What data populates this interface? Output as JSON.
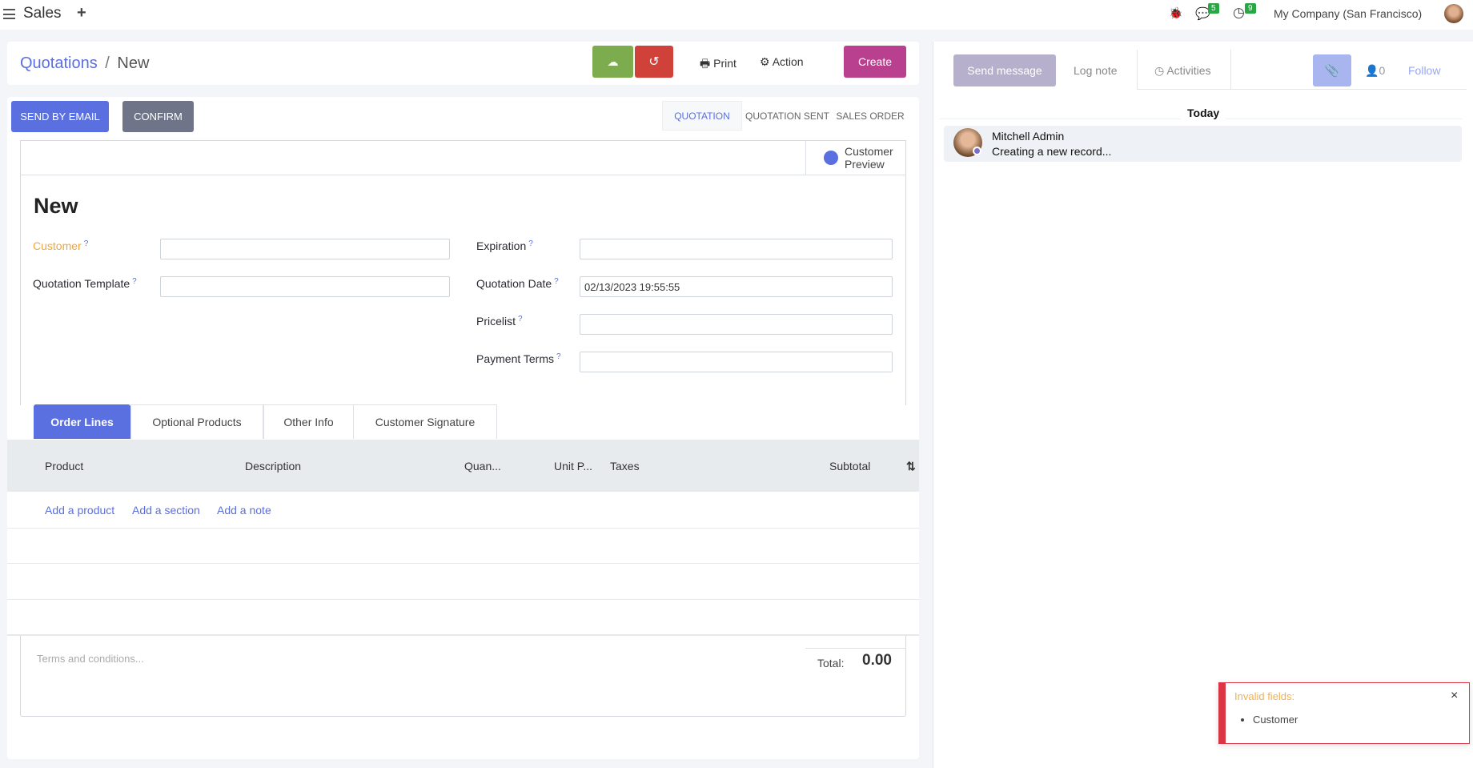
{
  "topbar": {
    "app": "Sales",
    "plus": "+",
    "chat_count": "5",
    "activity_count": "9",
    "company": "My Company (San Francisco)"
  },
  "control": {
    "breadcrumb_parent": "Quotations",
    "breadcrumb_sep": "/",
    "breadcrumb_current": "New",
    "print": "Print",
    "action": "Action",
    "create": "Create"
  },
  "buttons": {
    "send_email": "SEND BY EMAIL",
    "confirm": "CONFIRM"
  },
  "statusbar": [
    "QUOTATION",
    "QUOTATION SENT",
    "SALES ORDER"
  ],
  "customer_preview": "Customer Preview",
  "form": {
    "title": "New",
    "customer": {
      "label": "Customer",
      "value": ""
    },
    "template": {
      "label": "Quotation Template",
      "value": ""
    },
    "expiration": {
      "label": "Expiration",
      "value": ""
    },
    "date": {
      "label": "Quotation Date",
      "value": "02/13/2023 19:55:55"
    },
    "pricelist": {
      "label": "Pricelist",
      "value": ""
    },
    "payment_terms": {
      "label": "Payment Terms",
      "value": ""
    },
    "help": "?"
  },
  "tabs": [
    "Order Lines",
    "Optional Products",
    "Other Info",
    "Customer Signature"
  ],
  "table": {
    "columns": [
      "Product",
      "Description",
      "Quan...",
      "Unit P...",
      "Taxes",
      "Subtotal"
    ],
    "add_product": "Add a product",
    "add_section": "Add a section",
    "add_note": "Add a note"
  },
  "footer": {
    "terms_placeholder": "Terms and conditions...",
    "total_label": "Total:",
    "total": "0.00"
  },
  "chatter": {
    "send_message": "Send message",
    "log_note": "Log note",
    "activities": "Activities",
    "followers": "0",
    "follow": "Follow",
    "today": "Today",
    "author": "Mitchell Admin",
    "message": "Creating a new record..."
  },
  "toast": {
    "title": "Invalid fields:",
    "items": [
      "Customer"
    ],
    "close": "×"
  },
  "colors": {
    "primary": "#5a6fe0",
    "save": "#7cac4d",
    "discard": "#d0413a",
    "create": "#b8408e",
    "confirm": "#6f7488",
    "required": "#f0a73a",
    "danger": "#dc3545"
  }
}
